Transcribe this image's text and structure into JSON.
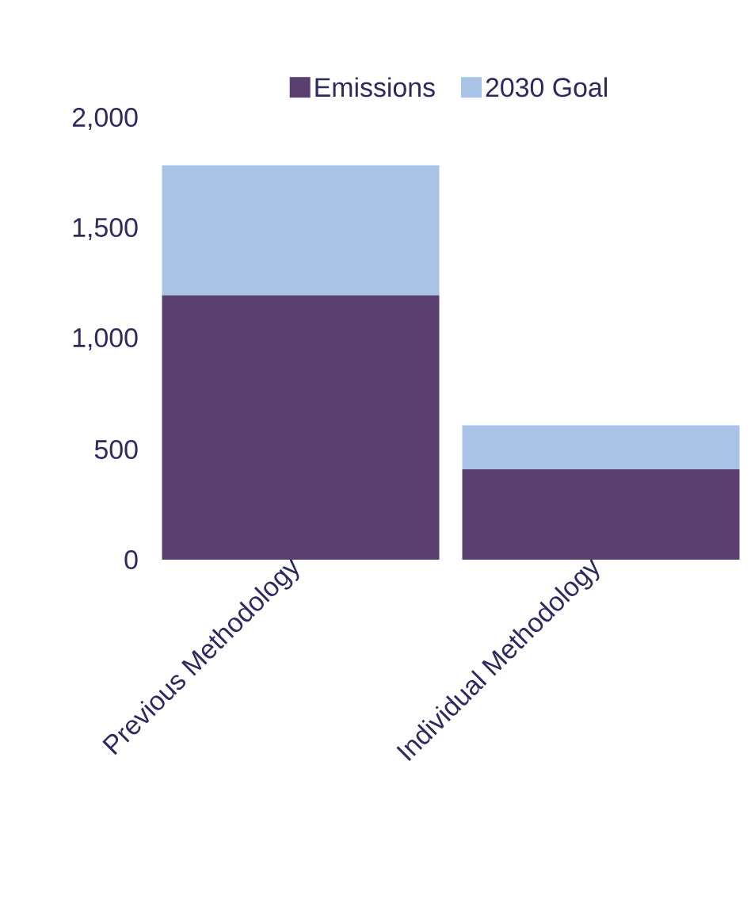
{
  "chart_data": {
    "type": "bar",
    "stacked": true,
    "categories": [
      "Previous Methodology",
      "Individual Methodology"
    ],
    "series": [
      {
        "name": "Emissions",
        "color": "#5a406e",
        "values": [
          1200,
          410
        ]
      },
      {
        "name": "2030 Goal",
        "color": "#a9c3e6",
        "values": [
          590,
          200
        ]
      }
    ],
    "ylim": [
      0,
      2000
    ],
    "yticks": [
      0,
      500,
      {
        "value": 1000,
        "label": "1,000"
      },
      {
        "value": 1500,
        "label": "1,500"
      },
      {
        "value": 2000,
        "label": "2,000"
      }
    ],
    "legend": "top",
    "grid": false
  }
}
